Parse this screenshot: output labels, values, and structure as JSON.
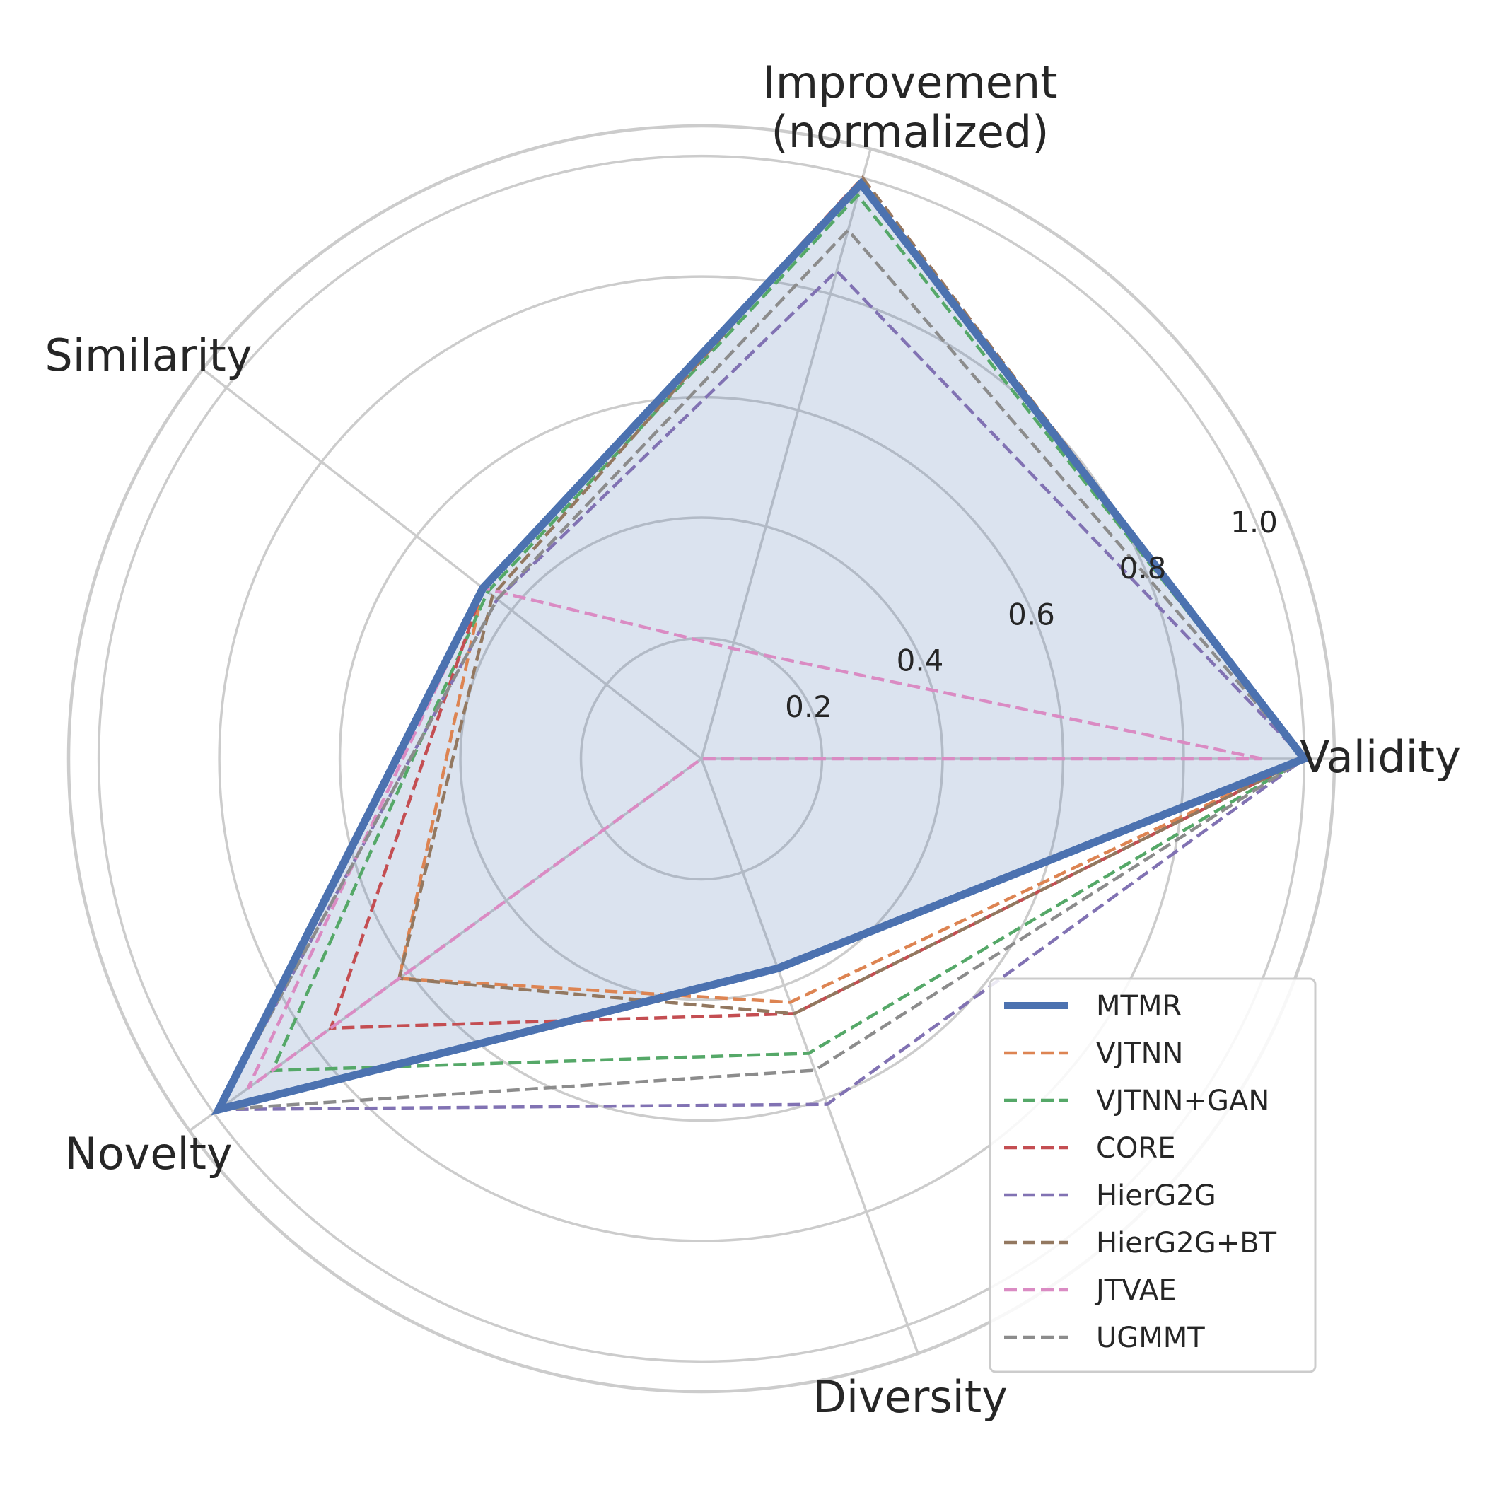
{
  "chart_data": {
    "type": "radar",
    "title": "",
    "axes": [
      "Validity",
      "Improvement\n(normalized)",
      "Similarity",
      "Novelty",
      "Diversity"
    ],
    "rlim": [
      0,
      1.05
    ],
    "rticks": [
      0.2,
      0.4,
      0.6,
      0.8,
      1.0
    ],
    "rtick_labels": [
      "0.2",
      "0.4",
      "0.6",
      "0.8",
      "1.0"
    ],
    "grid": true,
    "legend_position": "bottom-right",
    "series": [
      {
        "name": "MTMR",
        "values": [
          1.0,
          0.99,
          0.46,
          0.99,
          0.37
        ],
        "color": "#4c72b0",
        "style": "solid"
      },
      {
        "name": "VJTNN",
        "values": [
          1.0,
          1.0,
          0.46,
          0.62,
          0.43
        ],
        "color": "#dd8452",
        "style": "dashed"
      },
      {
        "name": "VJTNN+GAN",
        "values": [
          1.0,
          0.97,
          0.45,
          0.88,
          0.52
        ],
        "color": "#55a868",
        "style": "dashed"
      },
      {
        "name": "CORE",
        "values": [
          1.0,
          1.0,
          0.46,
          0.76,
          0.45
        ],
        "color": "#c44e52",
        "style": "dashed"
      },
      {
        "name": "HierG2G",
        "values": [
          1.0,
          0.84,
          0.43,
          0.99,
          0.61
        ],
        "color": "#8172b3",
        "style": "dashed"
      },
      {
        "name": "HierG2G+BT",
        "values": [
          1.0,
          1.0,
          0.44,
          0.62,
          0.45
        ],
        "color": "#937860",
        "style": "dashed"
      },
      {
        "name": "JTVAE",
        "values": [
          0.93,
          0.19,
          0.46,
          0.93,
          0.0
        ],
        "color": "#da8bc3",
        "style": "dashed"
      },
      {
        "name": "UGMMT",
        "values": [
          1.0,
          0.91,
          0.43,
          0.99,
          0.55
        ],
        "color": "#8c8c8c",
        "style": "dashed"
      }
    ]
  }
}
